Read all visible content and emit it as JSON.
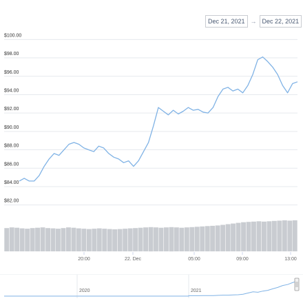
{
  "range_selector": {
    "from": "Dec 21, 2021",
    "arrow": "→",
    "to": "Dec 22, 2021"
  },
  "chart_data": {
    "type": "line",
    "title": "",
    "xlabel": "",
    "ylabel": "",
    "ylim": [
      81,
      101
    ],
    "y_ticks": [
      "$82.00",
      "$84.00",
      "$86.00",
      "$88.00",
      "$90.00",
      "$92.00",
      "$94.00",
      "$96.00",
      "$98.00",
      "$100.00"
    ],
    "x_ticks": [
      "20:00",
      "22. Dec",
      "05:00",
      "09:00",
      "13:00"
    ],
    "series": [
      {
        "values": [
          84.6,
          84.9,
          84.6,
          84.6,
          85.2,
          86.2,
          87.0,
          87.6,
          87.4,
          88.0,
          88.6,
          88.8,
          88.6,
          88.2,
          88.0,
          87.8,
          88.4,
          88.2,
          87.6,
          87.2,
          87.0,
          86.6,
          86.8,
          86.2,
          86.8,
          87.8,
          88.8,
          90.6,
          92.6,
          92.2,
          91.8,
          92.3,
          91.9,
          92.2,
          92.6,
          92.3,
          92.4,
          92.1,
          92.0,
          92.6,
          93.8,
          94.6,
          94.8,
          94.4,
          94.6,
          94.2,
          95.0,
          96.2,
          97.8,
          98.1,
          97.6,
          97.0,
          96.2,
          95.0,
          94.2,
          95.2,
          95.4
        ]
      }
    ],
    "volume": [
      0.72,
      0.74,
      0.73,
      0.71,
      0.7,
      0.72,
      0.73,
      0.74,
      0.72,
      0.71,
      0.7,
      0.72,
      0.74,
      0.73,
      0.71,
      0.7,
      0.69,
      0.7,
      0.71,
      0.7,
      0.69,
      0.68,
      0.69,
      0.7,
      0.71,
      0.72,
      0.73,
      0.74,
      0.75,
      0.74,
      0.73,
      0.74,
      0.75,
      0.74,
      0.73,
      0.74,
      0.75,
      0.76,
      0.77,
      0.78,
      0.79,
      0.8,
      0.82,
      0.84,
      0.86,
      0.88,
      0.9,
      0.91,
      0.92,
      0.93,
      0.92,
      0.93,
      0.94,
      0.95,
      0.96,
      0.95,
      0.96
    ],
    "navigator": {
      "labels": [
        "2020",
        "2021"
      ],
      "series": [
        0.02,
        0.02,
        0.02,
        0.03,
        0.03,
        0.03,
        0.04,
        0.05,
        0.05,
        0.06,
        0.07,
        0.1,
        0.16,
        0.22,
        0.2,
        0.26,
        0.3,
        0.38,
        0.45,
        0.55,
        0.6,
        0.7,
        0.78
      ]
    },
    "colors": {
      "line": "#7fb2e5",
      "volume": "#c9ccd1",
      "grid": "#e6e9ee",
      "text": "#333333",
      "axis": "#666666"
    }
  }
}
